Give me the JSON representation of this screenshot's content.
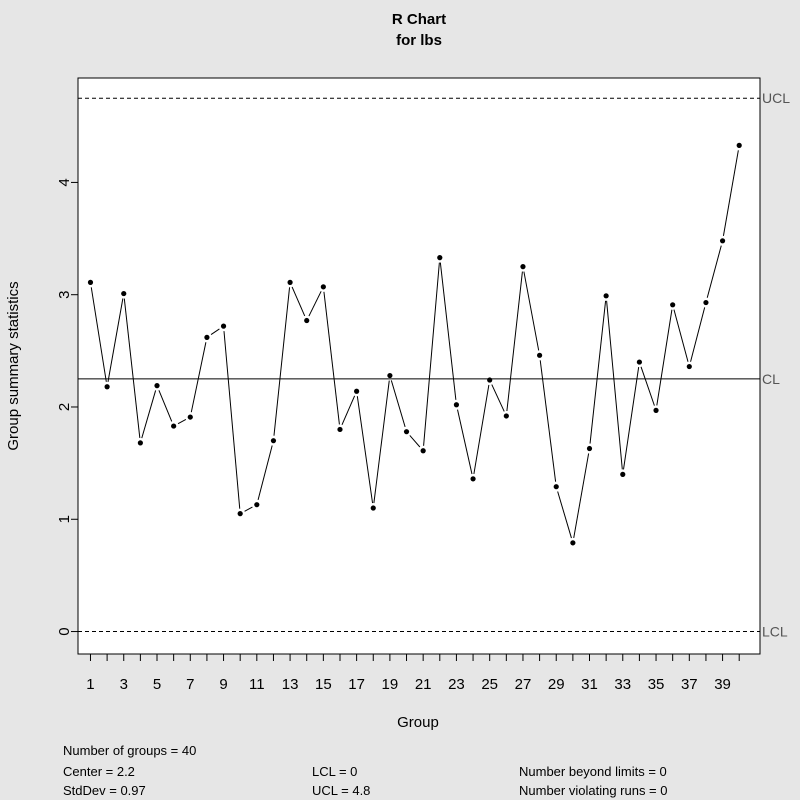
{
  "chart_data": {
    "type": "line",
    "title": "R Chart",
    "subtitle": "for lbs",
    "xlabel": "Group",
    "ylabel": "Group summary statistics",
    "x": [
      1,
      2,
      3,
      4,
      5,
      6,
      7,
      8,
      9,
      10,
      11,
      12,
      13,
      14,
      15,
      16,
      17,
      18,
      19,
      20,
      21,
      22,
      23,
      24,
      25,
      26,
      27,
      28,
      29,
      30,
      31,
      32,
      33,
      34,
      35,
      36,
      37,
      38,
      39,
      40
    ],
    "values": [
      3.11,
      2.18,
      3.01,
      1.68,
      2.19,
      1.83,
      1.91,
      2.62,
      2.72,
      1.05,
      1.13,
      1.7,
      3.11,
      2.77,
      3.07,
      1.8,
      2.14,
      1.1,
      2.28,
      1.78,
      1.61,
      3.33,
      2.02,
      1.36,
      2.24,
      1.92,
      3.25,
      2.46,
      1.29,
      0.79,
      1.63,
      2.99,
      1.4,
      2.4,
      1.97,
      2.91,
      2.36,
      2.93,
      3.48,
      4.33
    ],
    "xlim": [
      0.25,
      41.25
    ],
    "ylim": [
      -0.2,
      4.93
    ],
    "x_ticks": [
      1,
      2,
      3,
      4,
      5,
      6,
      7,
      8,
      9,
      10,
      11,
      12,
      13,
      14,
      15,
      16,
      17,
      18,
      19,
      20,
      21,
      22,
      23,
      24,
      25,
      26,
      27,
      28,
      29,
      30,
      31,
      32,
      33,
      34,
      35,
      36,
      37,
      38,
      39,
      40
    ],
    "x_tick_labels": [
      "1",
      "3",
      "5",
      "7",
      "9",
      "11",
      "13",
      "15",
      "17",
      "19",
      "21",
      "23",
      "25",
      "27",
      "29",
      "31",
      "33",
      "35",
      "37",
      "39"
    ],
    "y_ticks": [
      0,
      1,
      2,
      3,
      4
    ],
    "center_line": 2.25,
    "ucl_line": 4.75,
    "lcl_line": 0,
    "limit_labels": {
      "ucl": "UCL",
      "cl": "CL",
      "lcl": "LCL"
    },
    "grid": false,
    "legend": "none"
  },
  "stats": {
    "groups": "Number of groups = 40",
    "center": "Center = 2.2",
    "stddev": "StdDev = 0.97",
    "lcl": "LCL = 0",
    "ucl": "UCL = 4.8",
    "beyond": "Number beyond limits = 0",
    "violating": "Number violating runs = 0"
  }
}
